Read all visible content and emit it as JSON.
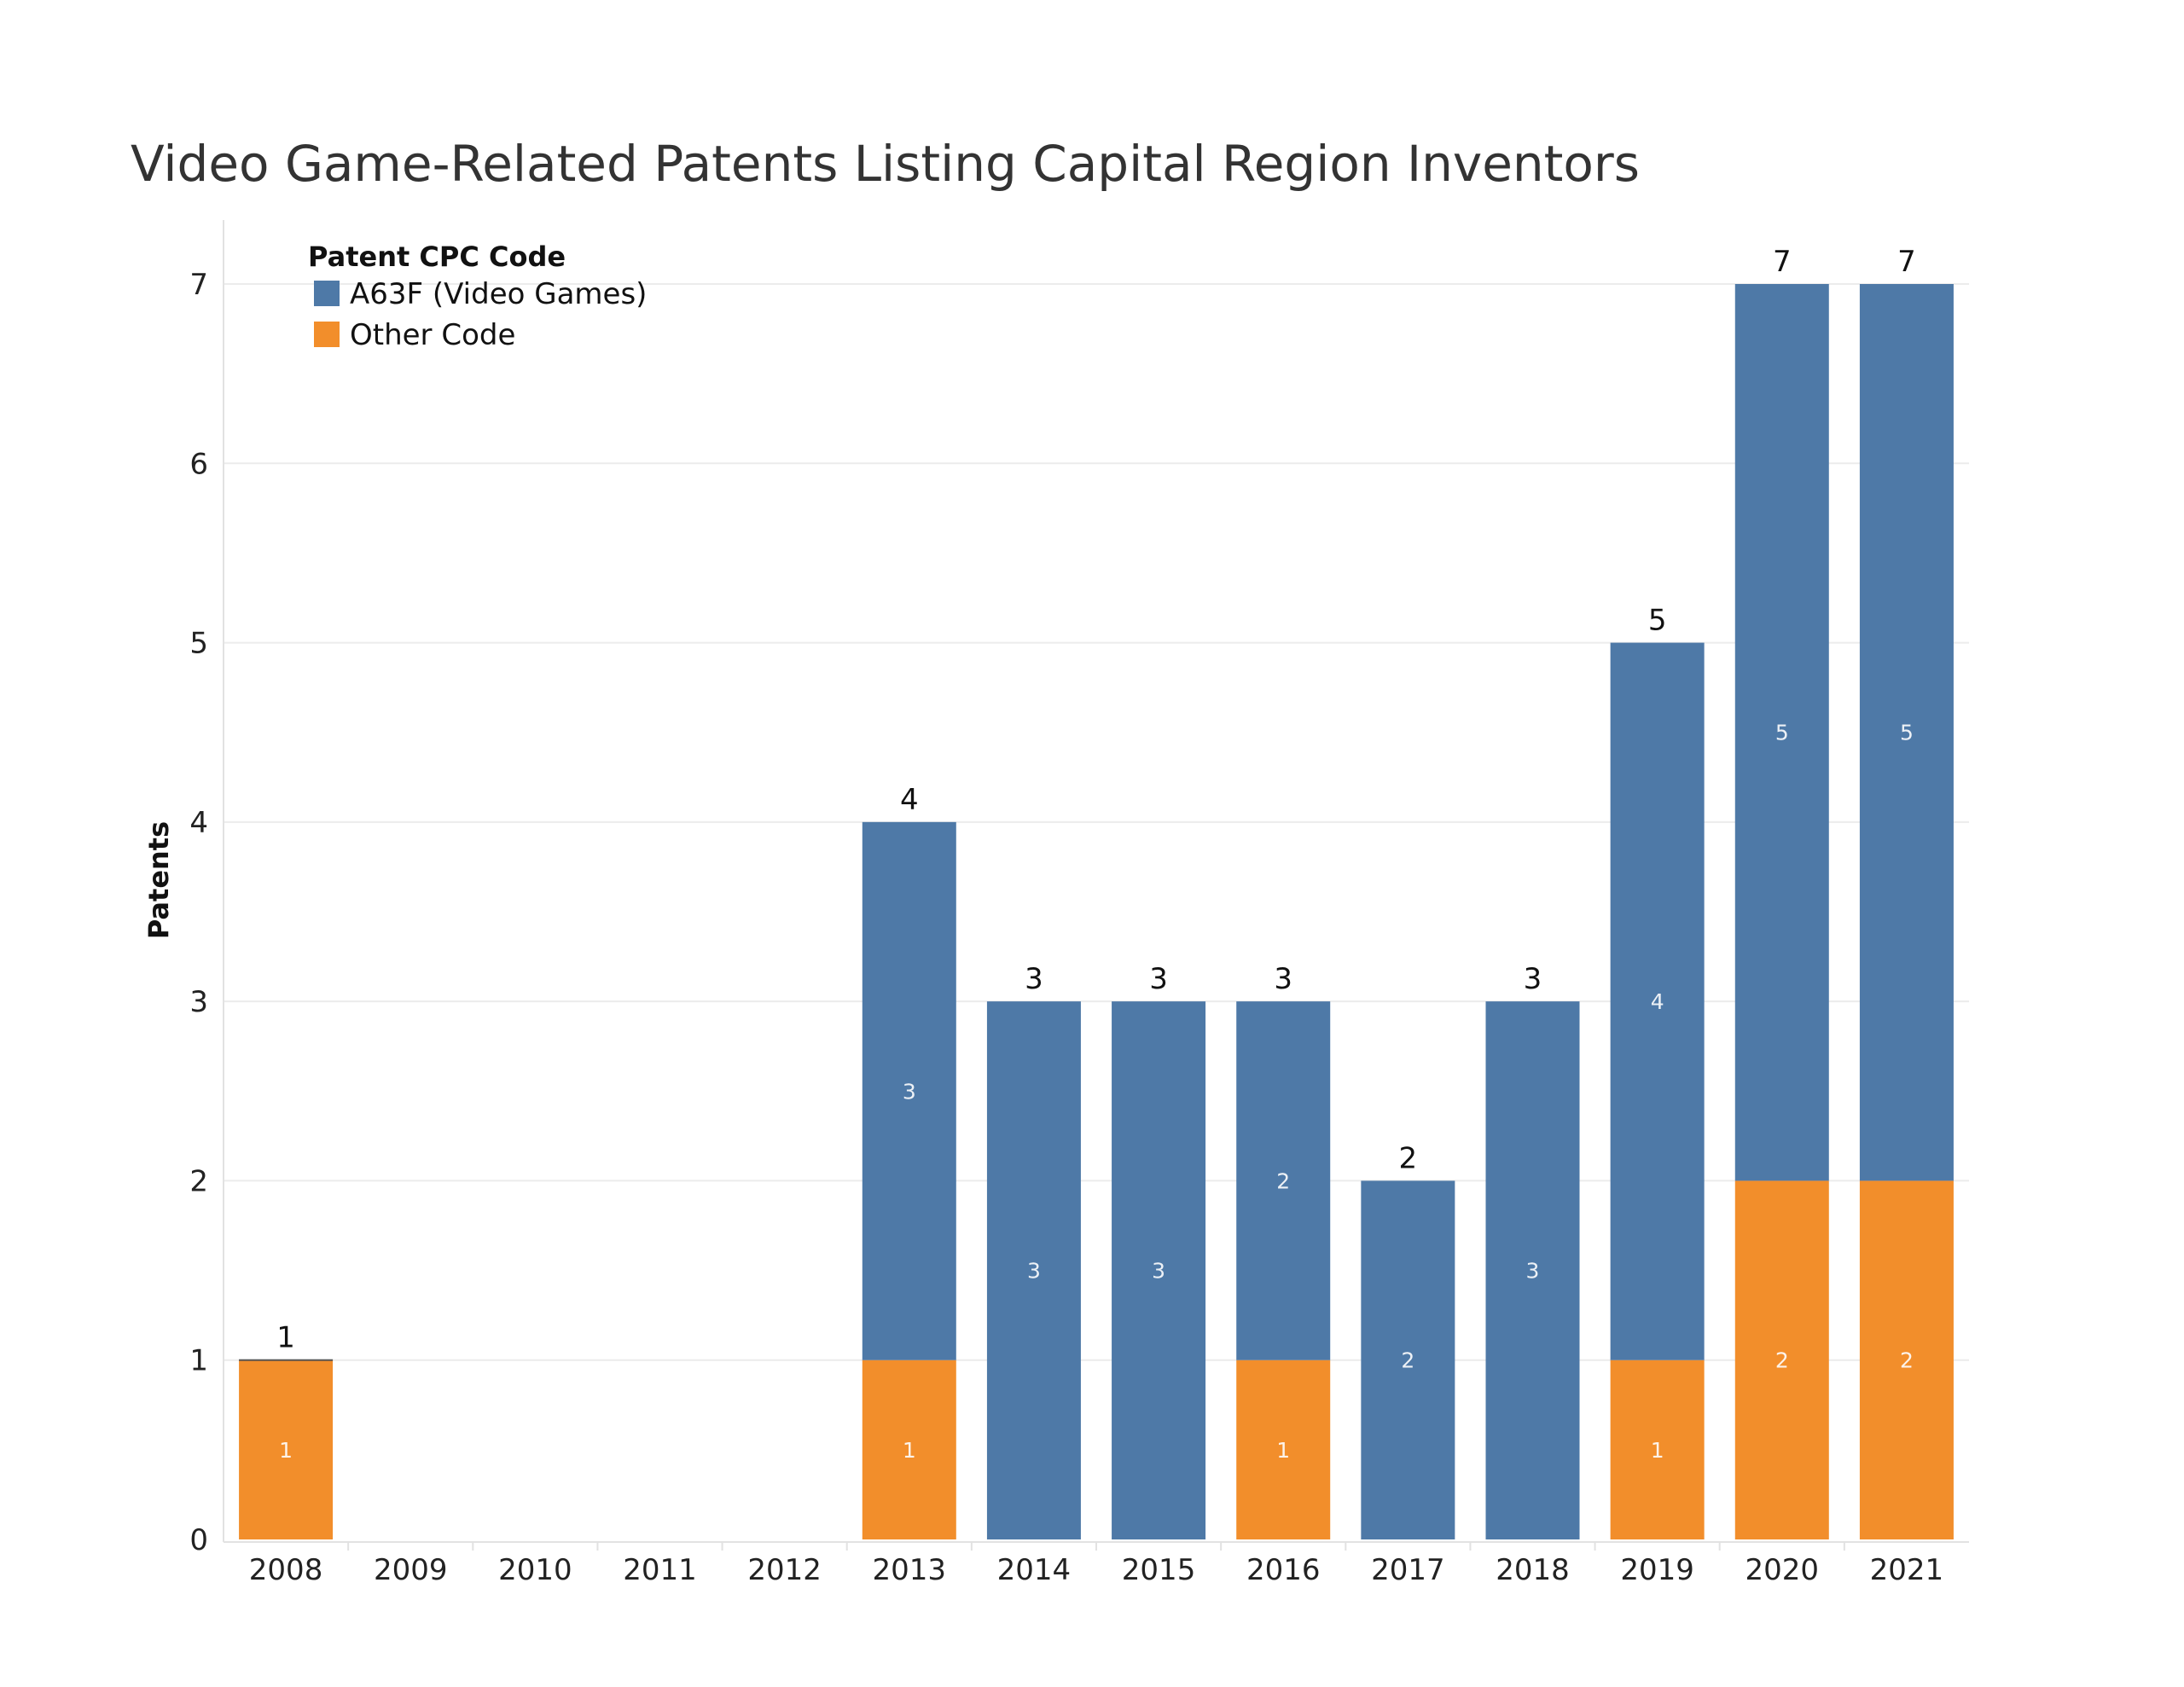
{
  "chart_data": {
    "type": "bar",
    "stacked": true,
    "title": "Video Game-Related Patents Listing Capital Region Inventors",
    "xlabel": "",
    "ylabel": "Patents",
    "ylim": [
      0,
      7
    ],
    "yticks": [
      "0",
      "1",
      "2",
      "3",
      "4",
      "5",
      "6",
      "7"
    ],
    "grid": true,
    "categories": [
      "2008",
      "2009",
      "2010",
      "2011",
      "2012",
      "2013",
      "2014",
      "2015",
      "2016",
      "2017",
      "2018",
      "2019",
      "2020",
      "2021"
    ],
    "series": [
      {
        "name": "Other Code",
        "color": "#f28e2b",
        "values": [
          1,
          0,
          0,
          0,
          0,
          1,
          0,
          0,
          1,
          0,
          0,
          1,
          2,
          2
        ],
        "labels": [
          "1",
          "",
          "",
          "",
          "",
          "1",
          "",
          "",
          "1",
          "",
          "",
          "1",
          "2",
          "2"
        ]
      },
      {
        "name": "A63F (Video Games)",
        "color": "#4e79a7",
        "values": [
          0,
          0,
          0,
          0,
          0,
          3,
          3,
          3,
          2,
          2,
          3,
          4,
          5,
          5
        ],
        "labels": [
          "",
          "",
          "",
          "",
          "",
          "3",
          "3",
          "3",
          "2",
          "2",
          "3",
          "4",
          "5",
          "5"
        ]
      }
    ],
    "totals": [
      1,
      null,
      null,
      null,
      null,
      4,
      3,
      3,
      3,
      2,
      3,
      5,
      7,
      7
    ],
    "total_labels": [
      "1",
      "",
      "",
      "",
      "",
      "4",
      "3",
      "3",
      "3",
      "2",
      "3",
      "5",
      "7",
      "7"
    ],
    "legend": {
      "title": "Patent CPC Code",
      "position": "top-left",
      "items": [
        {
          "label": "A63F (Video Games)",
          "color": "#4e79a7"
        },
        {
          "label": "Other Code",
          "color": "#f28e2b"
        }
      ]
    }
  }
}
